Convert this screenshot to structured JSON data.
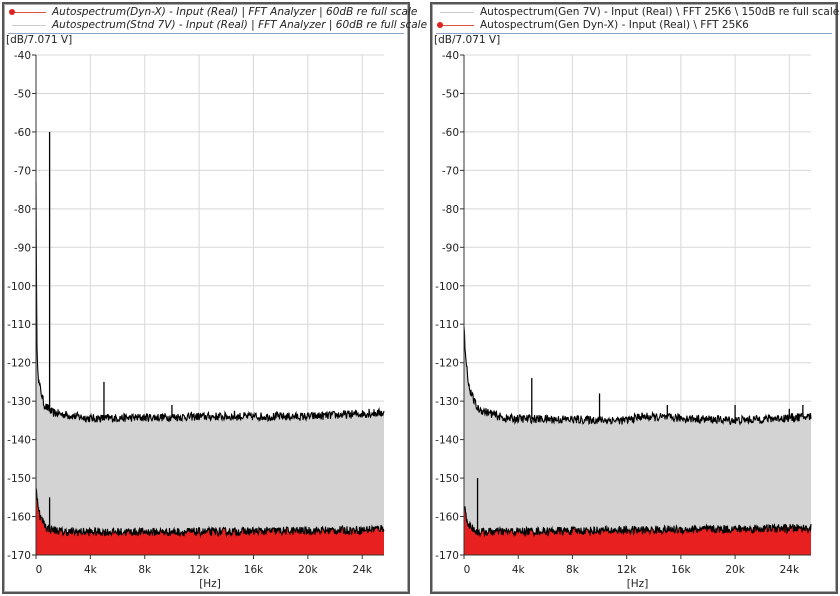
{
  "chart_data": [
    {
      "type": "area",
      "y_unit_label": "[dB/7.071 V]",
      "x_unit_label": "[Hz]",
      "xlim": [
        0,
        25600
      ],
      "ylim": [
        -170,
        -40
      ],
      "x_ticks": [
        0,
        4000,
        8000,
        12000,
        16000,
        20000,
        24000
      ],
      "x_tick_labels": [
        "0",
        "4k",
        "8k",
        "12k",
        "16k",
        "20k",
        "24k"
      ],
      "y_ticks": [
        -40,
        -50,
        -60,
        -70,
        -80,
        -90,
        -100,
        -110,
        -120,
        -130,
        -140,
        -150,
        -160,
        -170
      ],
      "y_tick_labels": [
        "-40",
        "-50",
        "-60",
        "-70",
        "-80",
        "-90",
        "-100",
        "-110",
        "-120",
        "-130",
        "-140",
        "-150",
        "-160",
        "-170"
      ],
      "grid": true,
      "legend_position": "top",
      "legend_italic": true,
      "series": [
        {
          "name": "Autospectrum(Dyn-X) - Input (Real) | FFT Analyzer | 60dB re full scale",
          "color": "#e82020",
          "legend_marker": "red-line-dot",
          "envelope": [
            [
              0,
              -153
            ],
            [
              300,
              -160
            ],
            [
              800,
              -163
            ],
            [
              2000,
              -164
            ],
            [
              12000,
              -164
            ],
            [
              24000,
              -163.5
            ],
            [
              25600,
              -163
            ]
          ],
          "peaks": [
            [
              1000,
              -155
            ]
          ]
        },
        {
          "name": "Autospectrum(Stnd 7V) - Input (Real) | FFT Analyzer | 60dB re full scale",
          "color": "#d3d3d3",
          "legend_marker": "gray-line",
          "envelope": [
            [
              0,
              -72
            ],
            [
              60,
              -116
            ],
            [
              200,
              -125
            ],
            [
              600,
              -131
            ],
            [
              1200,
              -133
            ],
            [
              4000,
              -134.5
            ],
            [
              12000,
              -134
            ],
            [
              20000,
              -134
            ],
            [
              25600,
              -133
            ]
          ],
          "peaks": [
            [
              1000,
              -60
            ],
            [
              5000,
              -125
            ],
            [
              10000,
              -131
            ],
            [
              14600,
              -132.5
            ],
            [
              24500,
              -132
            ]
          ]
        }
      ]
    },
    {
      "type": "area",
      "y_unit_label": "[dB/7.071 V]",
      "x_unit_label": "[Hz]",
      "xlim": [
        0,
        25600
      ],
      "ylim": [
        -170,
        -40
      ],
      "x_ticks": [
        0,
        4000,
        8000,
        12000,
        16000,
        20000,
        24000
      ],
      "x_tick_labels": [
        "0",
        "4k",
        "8k",
        "12k",
        "16k",
        "20k",
        "24k"
      ],
      "y_ticks": [
        -40,
        -50,
        -60,
        -70,
        -80,
        -90,
        -100,
        -110,
        -120,
        -130,
        -140,
        -150,
        -160,
        -170
      ],
      "y_tick_labels": [
        "-40",
        "-50",
        "-60",
        "-70",
        "-80",
        "-90",
        "-100",
        "-110",
        "-120",
        "-130",
        "-140",
        "-150",
        "-160",
        "-170"
      ],
      "grid": true,
      "legend_position": "top",
      "legend_italic": false,
      "series": [
        {
          "name": "Autospectrum(Gen 7V) - Input (Real) \\ FFT 25K6 \\ 150dB re full scale",
          "color": "#d3d3d3",
          "legend_marker": "gray-line",
          "envelope": [
            [
              0,
              -110
            ],
            [
              100,
              -118
            ],
            [
              400,
              -127
            ],
            [
              1000,
              -132
            ],
            [
              3000,
              -134.5
            ],
            [
              12000,
              -135
            ],
            [
              13000,
              -134
            ],
            [
              20000,
              -135
            ],
            [
              25600,
              -134
            ]
          ],
          "peaks": [
            [
              5000,
              -124
            ],
            [
              10000,
              -128
            ],
            [
              15000,
              -131
            ],
            [
              20000,
              -131
            ],
            [
              24000,
              -132
            ],
            [
              25000,
              -131
            ]
          ]
        },
        {
          "name": "Autospectrum(Gen Dyn-X) - Input (Real) \\ FFT 25K6",
          "color": "#e82020",
          "legend_marker": "red-line-dot",
          "envelope": [
            [
              0,
              -157
            ],
            [
              300,
              -162
            ],
            [
              1000,
              -164
            ],
            [
              25600,
              -163
            ]
          ],
          "peaks": [
            [
              1000,
              -150
            ]
          ]
        }
      ]
    }
  ]
}
